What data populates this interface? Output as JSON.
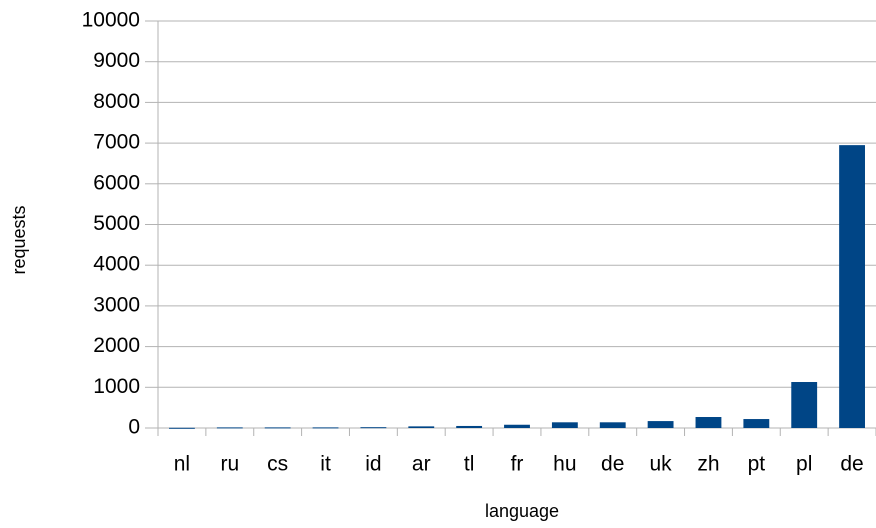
{
  "chart_data": {
    "type": "bar",
    "categories": [
      "nl",
      "ru",
      "cs",
      "it",
      "id",
      "ar",
      "tl",
      "fr",
      "hu",
      "de",
      "uk",
      "zh",
      "pt",
      "pl",
      "de"
    ],
    "values": [
      5,
      15,
      15,
      15,
      20,
      40,
      50,
      80,
      140,
      140,
      170,
      270,
      220,
      1130,
      6950
    ],
    "color": "#004586",
    "xlabel": "language",
    "ylabel": "requests",
    "ylim": [
      0,
      10000
    ],
    "yticks": [
      0,
      1000,
      2000,
      3000,
      4000,
      5000,
      6000,
      7000,
      8000,
      9000,
      10000
    ],
    "grid": true
  }
}
